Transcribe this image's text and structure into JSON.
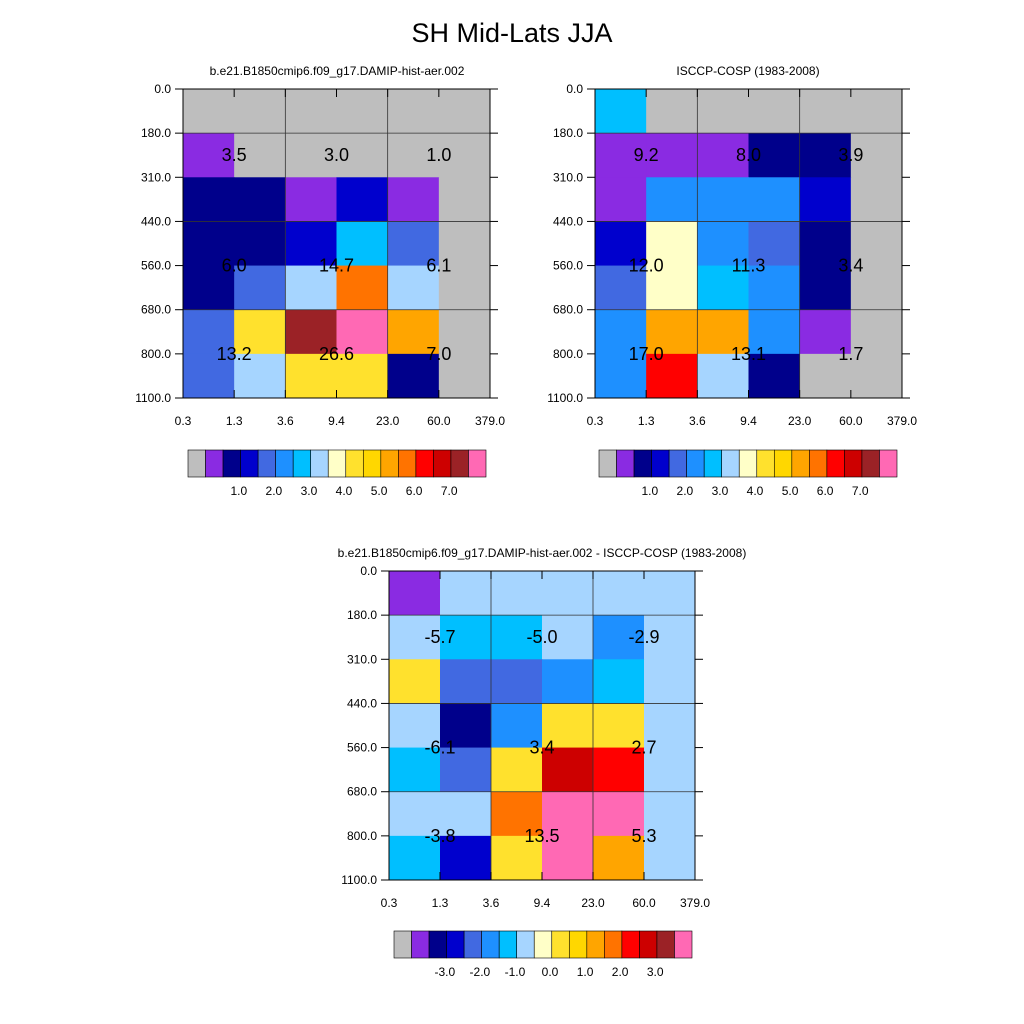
{
  "title": "SH Mid-Lats JJA",
  "chart_data": [
    {
      "type": "heatmap",
      "title": "b.e21.B1850cmip6.f09_g17.DAMIP-hist-aer.002",
      "x_ticks": [
        "0.3",
        "1.3",
        "3.6",
        "9.4",
        "23.0",
        "60.0",
        "379.0"
      ],
      "y_ticks": [
        "0.0",
        "180.0",
        "310.0",
        "440.0",
        "560.0",
        "680.0",
        "800.0",
        "1100.0"
      ],
      "cell_colors": [
        [
          "#BEBEBE",
          "#BEBEBE",
          "#BEBEBE",
          "#BEBEBE",
          "#BEBEBE",
          "#BEBEBE"
        ],
        [
          "#8A2BE2",
          "#BEBEBE",
          "#BEBEBE",
          "#BEBEBE",
          "#BEBEBE",
          "#BEBEBE"
        ],
        [
          "#00008B",
          "#00008B",
          "#8A2BE2",
          "#0000CD",
          "#8A2BE2",
          "#BEBEBE"
        ],
        [
          "#00008B",
          "#00008B",
          "#0000CD",
          "#00BFFF",
          "#4169E1",
          "#BEBEBE"
        ],
        [
          "#00008B",
          "#4169E1",
          "#A6D5FF",
          "#FF7300",
          "#A6D5FF",
          "#BEBEBE"
        ],
        [
          "#4169E1",
          "#FFE12D",
          "#9B2226",
          "#FF69B4",
          "#FFA500",
          "#BEBEBE"
        ],
        [
          "#4169E1",
          "#A6D5FF",
          "#FFE12D",
          "#FFE12D",
          "#00008B",
          "#BEBEBE"
        ]
      ],
      "block_values": [
        [
          "3.5",
          "3.0",
          "1.0"
        ],
        [
          "6.0",
          "14.7",
          "6.1"
        ],
        [
          "13.2",
          "26.6",
          "7.0"
        ]
      ],
      "colorbar": {
        "colors": [
          "#BEBEBE",
          "#8A2BE2",
          "#00008B",
          "#0000CD",
          "#4169E1",
          "#1E90FF",
          "#00BFFF",
          "#A6D5FF",
          "#FFFFC8",
          "#FFE12D",
          "#FFD700",
          "#FFA500",
          "#FF7300",
          "#FF0000",
          "#CD0000",
          "#9B2226",
          "#FF69B4"
        ],
        "labels": [
          "1.0",
          "2.0",
          "3.0",
          "4.0",
          "5.0",
          "6.0",
          "7.0"
        ]
      }
    },
    {
      "type": "heatmap",
      "title": "ISCCP-COSP (1983-2008)",
      "x_ticks": [
        "0.3",
        "1.3",
        "3.6",
        "9.4",
        "23.0",
        "60.0",
        "379.0"
      ],
      "y_ticks": [
        "0.0",
        "180.0",
        "310.0",
        "440.0",
        "560.0",
        "680.0",
        "800.0",
        "1100.0"
      ],
      "cell_colors": [
        [
          "#00BFFF",
          "#BEBEBE",
          "#BEBEBE",
          "#BEBEBE",
          "#BEBEBE",
          "#BEBEBE"
        ],
        [
          "#8A2BE2",
          "#8A2BE2",
          "#8A2BE2",
          "#00008B",
          "#00008B",
          "#BEBEBE"
        ],
        [
          "#8A2BE2",
          "#1E90FF",
          "#1E90FF",
          "#1E90FF",
          "#0000CD",
          "#BEBEBE"
        ],
        [
          "#0000CD",
          "#FFFFC8",
          "#1E90FF",
          "#4169E1",
          "#00008B",
          "#BEBEBE"
        ],
        [
          "#4169E1",
          "#FFFFC8",
          "#00BFFF",
          "#1E90FF",
          "#00008B",
          "#BEBEBE"
        ],
        [
          "#1E90FF",
          "#FFA500",
          "#FFA500",
          "#1E90FF",
          "#8A2BE2",
          "#BEBEBE"
        ],
        [
          "#1E90FF",
          "#FF0000",
          "#A6D5FF",
          "#00008B",
          "#BEBEBE",
          "#BEBEBE"
        ]
      ],
      "block_values": [
        [
          "9.2",
          "8.0",
          "3.9"
        ],
        [
          "12.0",
          "11.3",
          "3.4"
        ],
        [
          "17.0",
          "13.1",
          "1.7"
        ]
      ],
      "colorbar": {
        "colors": [
          "#BEBEBE",
          "#8A2BE2",
          "#00008B",
          "#0000CD",
          "#4169E1",
          "#1E90FF",
          "#00BFFF",
          "#A6D5FF",
          "#FFFFC8",
          "#FFE12D",
          "#FFD700",
          "#FFA500",
          "#FF7300",
          "#FF0000",
          "#CD0000",
          "#9B2226",
          "#FF69B4"
        ],
        "labels": [
          "1.0",
          "2.0",
          "3.0",
          "4.0",
          "5.0",
          "6.0",
          "7.0"
        ]
      }
    },
    {
      "type": "heatmap",
      "title": "b.e21.B1850cmip6.f09_g17.DAMIP-hist-aer.002 - ISCCP-COSP (1983-2008)",
      "x_ticks": [
        "0.3",
        "1.3",
        "3.6",
        "9.4",
        "23.0",
        "60.0",
        "379.0"
      ],
      "y_ticks": [
        "0.0",
        "180.0",
        "310.0",
        "440.0",
        "560.0",
        "680.0",
        "800.0",
        "1100.0"
      ],
      "cell_colors": [
        [
          "#8A2BE2",
          "#A6D5FF",
          "#A6D5FF",
          "#A6D5FF",
          "#A6D5FF",
          "#A6D5FF"
        ],
        [
          "#A6D5FF",
          "#00BFFF",
          "#00BFFF",
          "#A6D5FF",
          "#1E90FF",
          "#A6D5FF"
        ],
        [
          "#FFE12D",
          "#4169E1",
          "#4169E1",
          "#1E90FF",
          "#00BFFF",
          "#A6D5FF"
        ],
        [
          "#A6D5FF",
          "#00008B",
          "#1E90FF",
          "#FFE12D",
          "#FFE12D",
          "#A6D5FF"
        ],
        [
          "#00BFFF",
          "#4169E1",
          "#FFE12D",
          "#CD0000",
          "#FF0000",
          "#A6D5FF"
        ],
        [
          "#A6D5FF",
          "#A6D5FF",
          "#FF7300",
          "#FF69B4",
          "#FF69B4",
          "#A6D5FF"
        ],
        [
          "#00BFFF",
          "#0000CD",
          "#FFE12D",
          "#FF69B4",
          "#FFA500",
          "#A6D5FF"
        ]
      ],
      "block_values": [
        [
          "-5.7",
          "-5.0",
          "-2.9"
        ],
        [
          "-6.1",
          "3.4",
          "2.7"
        ],
        [
          "-3.8",
          "13.5",
          "5.3"
        ]
      ],
      "colorbar": {
        "colors": [
          "#BEBEBE",
          "#8A2BE2",
          "#00008B",
          "#0000CD",
          "#4169E1",
          "#1E90FF",
          "#00BFFF",
          "#A6D5FF",
          "#FFFFC8",
          "#FFE12D",
          "#FFD700",
          "#FFA500",
          "#FF7300",
          "#FF0000",
          "#CD0000",
          "#9B2226",
          "#FF69B4"
        ],
        "labels": [
          "-3.0",
          "-2.0",
          "-1.0",
          "0.0",
          "1.0",
          "2.0",
          "3.0"
        ]
      }
    }
  ]
}
